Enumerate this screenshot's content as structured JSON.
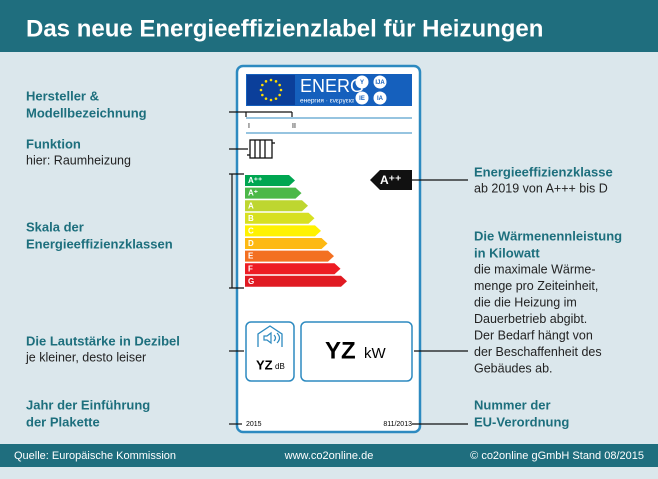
{
  "header": {
    "title": "Das neue Energieeffizienzlabel für Heizungen"
  },
  "label": {
    "energ": "ENERG",
    "energ_sub": "енергия · ενεργεια",
    "languages": [
      "Y",
      "IJA",
      "IE",
      "IA"
    ],
    "marks": [
      "I",
      "II"
    ],
    "scale": [
      "A⁺⁺",
      "A⁺",
      "A",
      "B",
      "C",
      "D",
      "E",
      "F",
      "G"
    ],
    "class": "A⁺⁺",
    "noise": {
      "value": "YZ",
      "unit": "dB"
    },
    "power": {
      "value": "YZ",
      "unit": "kW"
    },
    "year": "2015",
    "regulation": "811/2013"
  },
  "annotations": {
    "left": [
      {
        "title": [
          "Hersteller &",
          "Modellbezeichnung"
        ],
        "text": []
      },
      {
        "title": [
          "Funktion"
        ],
        "text": [
          "hier: Raumheizung"
        ]
      },
      {
        "title": [
          "Skala der",
          "Energieeffizienzklassen"
        ],
        "text": []
      },
      {
        "title": [
          "Die Lautstärke in Dezibel"
        ],
        "text": [
          "je kleiner, desto leiser"
        ]
      },
      {
        "title": [
          "Jahr der Einführung",
          "der Plakette"
        ],
        "text": []
      }
    ],
    "right": [
      {
        "title": [
          "Energieeffizienzklasse"
        ],
        "text": [
          "ab 2019 von A+++ bis D"
        ]
      },
      {
        "title": [
          "Die Wärmenennleistung",
          "in Kilowatt"
        ],
        "text": [
          "die maximale Wärme-",
          "menge pro Zeiteinheit,",
          "die die Heizung im",
          "Dauerbetrieb abgibt.",
          "Der Bedarf hängt von",
          "der Beschaffenheit des",
          "Gebäudes ab."
        ]
      },
      {
        "title": [
          "Nummer der",
          "EU-Verordnung"
        ],
        "text": []
      }
    ]
  },
  "footer": {
    "source": "Quelle: Europäische Kommission",
    "url": "www.co2online.de",
    "copyright": "©  co2online gGmbH Stand 08/2015"
  }
}
